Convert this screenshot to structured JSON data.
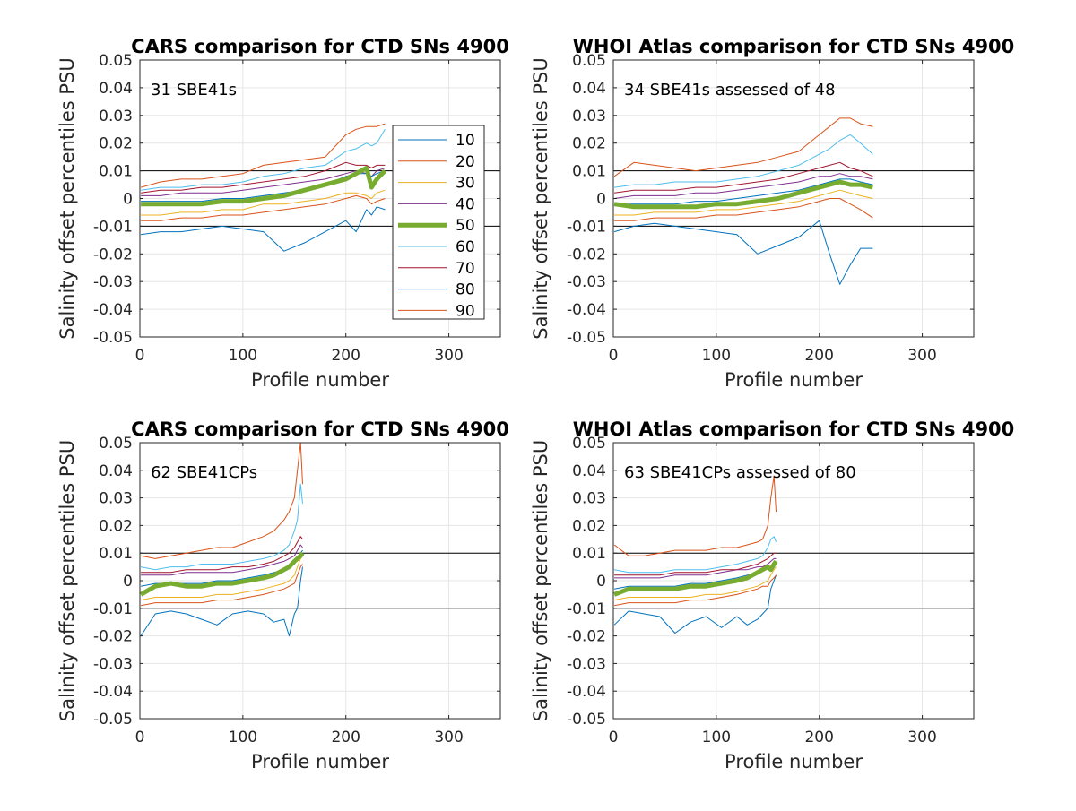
{
  "figure": {
    "background": "#ffffff"
  },
  "percentile_colors": {
    "10": "#0072BD",
    "20": "#D95319",
    "30": "#EDB120",
    "40": "#7E2F8E",
    "50": "#77AC30",
    "60": "#4DBEEE",
    "70": "#A2142F",
    "80": "#0072BD",
    "90": "#D95319"
  },
  "legend": {
    "entries": [
      "10",
      "20",
      "30",
      "40",
      "50",
      "60",
      "70",
      "80",
      "90"
    ],
    "location": "northeast"
  },
  "chart_data": [
    {
      "type": "line",
      "title": "CARS comparison for CTD SNs 4900",
      "xlabel": "Profile number",
      "ylabel": "Salinity offset percentiles PSU",
      "annotation": "31 SBE41s",
      "xlim": [
        0,
        350
      ],
      "ylim": [
        -0.05,
        0.05
      ],
      "xticks": [
        0,
        100,
        200,
        300
      ],
      "yticks": [
        -0.05,
        -0.04,
        -0.03,
        -0.02,
        -0.01,
        0,
        0.01,
        0.02,
        0.03,
        0.04,
        0.05
      ],
      "reference_lines": [
        0.01,
        -0.01
      ],
      "grid": true,
      "show_legend": true,
      "x": [
        1,
        20,
        40,
        60,
        80,
        100,
        120,
        140,
        160,
        180,
        200,
        210,
        220,
        225,
        230,
        238
      ],
      "series": [
        {
          "name": "10",
          "values": [
            -0.013,
            -0.012,
            -0.012,
            -0.011,
            -0.01,
            -0.011,
            -0.012,
            -0.019,
            -0.016,
            -0.012,
            -0.008,
            -0.012,
            -0.004,
            -0.006,
            -0.003,
            -0.004
          ]
        },
        {
          "name": "20",
          "values": [
            0.004,
            0.006,
            0.007,
            0.007,
            0.008,
            0.009,
            0.012,
            0.013,
            0.014,
            0.015,
            0.023,
            0.025,
            0.026,
            0.026,
            0.026,
            0.027
          ]
        },
        {
          "name": "30",
          "values": [
            -0.006,
            -0.006,
            -0.005,
            -0.005,
            -0.004,
            -0.004,
            -0.002,
            -0.002,
            -0.001,
            0.0,
            0.002,
            0.002,
            0.001,
            0.0,
            0.002,
            0.003
          ]
        },
        {
          "name": "40",
          "values": [
            0.001,
            0.001,
            0.002,
            0.002,
            0.002,
            0.003,
            0.004,
            0.005,
            0.006,
            0.007,
            0.009,
            0.01,
            0.009,
            0.008,
            0.01,
            0.011
          ]
        },
        {
          "name": "50",
          "values": [
            -0.002,
            -0.002,
            -0.002,
            -0.002,
            -0.001,
            -0.001,
            0.0,
            0.001,
            0.003,
            0.005,
            0.007,
            0.009,
            0.011,
            0.004,
            0.007,
            0.01
          ]
        },
        {
          "name": "60",
          "values": [
            0.003,
            0.004,
            0.004,
            0.005,
            0.005,
            0.006,
            0.008,
            0.009,
            0.011,
            0.012,
            0.017,
            0.018,
            0.02,
            0.019,
            0.02,
            0.025
          ]
        },
        {
          "name": "70",
          "values": [
            0.002,
            0.003,
            0.003,
            0.004,
            0.004,
            0.005,
            0.006,
            0.007,
            0.008,
            0.01,
            0.013,
            0.012,
            0.012,
            0.011,
            0.012,
            0.012
          ]
        },
        {
          "name": "80",
          "values": [
            -0.001,
            -0.001,
            -0.001,
            -0.001,
            0.0,
            0.0,
            0.001,
            0.002,
            0.003,
            0.005,
            0.008,
            0.009,
            0.009,
            0.008,
            0.009,
            0.01
          ]
        },
        {
          "name": "90",
          "values": [
            -0.008,
            -0.008,
            -0.007,
            -0.007,
            -0.006,
            -0.006,
            -0.005,
            -0.004,
            -0.003,
            -0.002,
            0.0,
            0.001,
            0.0,
            -0.002,
            -0.001,
            0.0
          ]
        }
      ]
    },
    {
      "type": "line",
      "title": "WHOI Atlas comparison for CTD SNs 4900",
      "xlabel": "Profile number",
      "ylabel": "Salinity offset percentiles PSU",
      "annotation": "34 SBE41s assessed of 48",
      "xlim": [
        0,
        350
      ],
      "ylim": [
        -0.05,
        0.05
      ],
      "xticks": [
        0,
        100,
        200,
        300
      ],
      "yticks": [
        -0.05,
        -0.04,
        -0.03,
        -0.02,
        -0.01,
        0,
        0.01,
        0.02,
        0.03,
        0.04,
        0.05
      ],
      "reference_lines": [
        0.01,
        -0.01
      ],
      "grid": true,
      "show_legend": false,
      "x": [
        1,
        20,
        40,
        60,
        80,
        100,
        120,
        140,
        160,
        180,
        200,
        210,
        220,
        230,
        240,
        252
      ],
      "series": [
        {
          "name": "10",
          "values": [
            -0.012,
            -0.01,
            -0.009,
            -0.01,
            -0.011,
            -0.012,
            -0.013,
            -0.02,
            -0.017,
            -0.014,
            -0.008,
            -0.02,
            -0.031,
            -0.024,
            -0.018,
            -0.018
          ]
        },
        {
          "name": "20",
          "values": [
            0.008,
            0.013,
            0.012,
            0.011,
            0.01,
            0.011,
            0.012,
            0.013,
            0.015,
            0.017,
            0.023,
            0.026,
            0.029,
            0.029,
            0.027,
            0.026
          ]
        },
        {
          "name": "30",
          "values": [
            -0.006,
            -0.006,
            -0.005,
            -0.005,
            -0.005,
            -0.004,
            -0.004,
            -0.003,
            -0.002,
            -0.001,
            0.001,
            0.002,
            0.003,
            0.002,
            0.001,
            0.0
          ]
        },
        {
          "name": "40",
          "values": [
            0.0,
            0.001,
            0.001,
            0.001,
            0.002,
            0.002,
            0.003,
            0.004,
            0.005,
            0.006,
            0.008,
            0.008,
            0.009,
            0.008,
            0.008,
            0.007
          ]
        },
        {
          "name": "50",
          "values": [
            -0.002,
            -0.003,
            -0.003,
            -0.003,
            -0.003,
            -0.002,
            -0.002,
            -0.001,
            0.0,
            0.002,
            0.004,
            0.005,
            0.006,
            0.005,
            0.005,
            0.004
          ]
        },
        {
          "name": "60",
          "values": [
            0.004,
            0.005,
            0.005,
            0.006,
            0.006,
            0.006,
            0.007,
            0.008,
            0.01,
            0.012,
            0.016,
            0.018,
            0.021,
            0.023,
            0.02,
            0.016
          ]
        },
        {
          "name": "70",
          "values": [
            0.002,
            0.003,
            0.003,
            0.003,
            0.004,
            0.004,
            0.005,
            0.006,
            0.007,
            0.009,
            0.011,
            0.012,
            0.013,
            0.011,
            0.01,
            0.008
          ]
        },
        {
          "name": "80",
          "values": [
            -0.002,
            -0.002,
            -0.002,
            -0.002,
            -0.001,
            -0.001,
            0.0,
            0.001,
            0.002,
            0.003,
            0.005,
            0.006,
            0.007,
            0.007,
            0.006,
            0.005
          ]
        },
        {
          "name": "90",
          "values": [
            -0.008,
            -0.008,
            -0.007,
            -0.007,
            -0.007,
            -0.006,
            -0.006,
            -0.005,
            -0.004,
            -0.003,
            -0.001,
            0.0,
            0.0,
            -0.002,
            -0.004,
            -0.007
          ]
        }
      ]
    },
    {
      "type": "line",
      "title": "CARS comparison for CTD SNs 4900",
      "xlabel": "Profile number",
      "ylabel": "Salinity offset percentiles PSU",
      "annotation": "62 SBE41CPs",
      "xlim": [
        0,
        350
      ],
      "ylim": [
        -0.05,
        0.05
      ],
      "xticks": [
        0,
        100,
        200,
        300
      ],
      "yticks": [
        -0.05,
        -0.04,
        -0.03,
        -0.02,
        -0.01,
        0,
        0.01,
        0.02,
        0.03,
        0.04,
        0.05
      ],
      "reference_lines": [
        0.01,
        -0.01
      ],
      "grid": true,
      "show_legend": false,
      "x": [
        1,
        15,
        30,
        45,
        60,
        75,
        90,
        105,
        120,
        130,
        140,
        145,
        150,
        153,
        156,
        158
      ],
      "series": [
        {
          "name": "10",
          "values": [
            -0.02,
            -0.012,
            -0.011,
            -0.012,
            -0.014,
            -0.016,
            -0.012,
            -0.011,
            -0.012,
            -0.015,
            -0.014,
            -0.02,
            -0.012,
            -0.01,
            0.0,
            0.005
          ]
        },
        {
          "name": "20",
          "values": [
            0.009,
            0.008,
            0.009,
            0.01,
            0.011,
            0.012,
            0.012,
            0.014,
            0.016,
            0.018,
            0.022,
            0.025,
            0.03,
            0.04,
            0.05,
            0.035
          ]
        },
        {
          "name": "30",
          "values": [
            -0.007,
            -0.006,
            -0.006,
            -0.006,
            -0.006,
            -0.005,
            -0.005,
            -0.004,
            -0.003,
            -0.002,
            -0.001,
            0.0,
            0.002,
            0.005,
            0.008,
            0.009
          ]
        },
        {
          "name": "40",
          "values": [
            0.002,
            0.002,
            0.002,
            0.003,
            0.003,
            0.003,
            0.003,
            0.004,
            0.005,
            0.006,
            0.007,
            0.008,
            0.009,
            0.011,
            0.013,
            0.012
          ]
        },
        {
          "name": "50",
          "values": [
            -0.005,
            -0.002,
            -0.001,
            -0.002,
            -0.002,
            -0.001,
            -0.001,
            0.0,
            0.001,
            0.002,
            0.004,
            0.005,
            0.007,
            0.008,
            0.009,
            0.01
          ]
        },
        {
          "name": "60",
          "values": [
            0.005,
            0.004,
            0.005,
            0.005,
            0.006,
            0.006,
            0.006,
            0.007,
            0.008,
            0.009,
            0.011,
            0.013,
            0.018,
            0.022,
            0.035,
            0.028
          ]
        },
        {
          "name": "70",
          "values": [
            0.003,
            0.003,
            0.003,
            0.004,
            0.004,
            0.004,
            0.005,
            0.005,
            0.006,
            0.007,
            0.009,
            0.01,
            0.012,
            0.014,
            0.016,
            0.015
          ]
        },
        {
          "name": "80",
          "values": [
            -0.002,
            -0.001,
            -0.001,
            -0.001,
            -0.001,
            0.0,
            0.0,
            0.001,
            0.002,
            0.003,
            0.004,
            0.005,
            0.006,
            0.008,
            0.01,
            0.011
          ]
        },
        {
          "name": "90",
          "values": [
            -0.009,
            -0.008,
            -0.008,
            -0.008,
            -0.008,
            -0.007,
            -0.007,
            -0.006,
            -0.005,
            -0.004,
            -0.003,
            -0.002,
            -0.001,
            0.002,
            0.005,
            0.006
          ]
        }
      ]
    },
    {
      "type": "line",
      "title": "WHOI Atlas comparison for CTD SNs 4900",
      "xlabel": "Profile number",
      "ylabel": "Salinity offset percentiles PSU",
      "annotation": "63 SBE41CPs assessed of 80",
      "xlim": [
        0,
        350
      ],
      "ylim": [
        -0.05,
        0.05
      ],
      "xticks": [
        0,
        100,
        200,
        300
      ],
      "yticks": [
        -0.05,
        -0.04,
        -0.03,
        -0.02,
        -0.01,
        0,
        0.01,
        0.02,
        0.03,
        0.04,
        0.05
      ],
      "reference_lines": [
        0.01,
        -0.01
      ],
      "grid": true,
      "show_legend": false,
      "x": [
        1,
        15,
        30,
        45,
        60,
        75,
        90,
        105,
        120,
        130,
        140,
        145,
        150,
        153,
        156,
        158
      ],
      "series": [
        {
          "name": "10",
          "values": [
            -0.016,
            -0.011,
            -0.012,
            -0.013,
            -0.019,
            -0.015,
            -0.013,
            -0.017,
            -0.013,
            -0.016,
            -0.014,
            -0.012,
            -0.01,
            -0.003,
            0.0,
            0.002
          ]
        },
        {
          "name": "20",
          "values": [
            0.013,
            0.009,
            0.009,
            0.01,
            0.011,
            0.011,
            0.011,
            0.012,
            0.012,
            0.013,
            0.014,
            0.015,
            0.02,
            0.03,
            0.038,
            0.025
          ]
        },
        {
          "name": "30",
          "values": [
            -0.007,
            -0.006,
            -0.006,
            -0.006,
            -0.006,
            -0.006,
            -0.005,
            -0.005,
            -0.004,
            -0.003,
            -0.002,
            -0.001,
            0.0,
            0.002,
            0.004,
            0.005
          ]
        },
        {
          "name": "40",
          "values": [
            0.001,
            0.001,
            0.001,
            0.001,
            0.002,
            0.002,
            0.002,
            0.003,
            0.004,
            0.004,
            0.005,
            0.005,
            0.006,
            0.007,
            0.008,
            0.008
          ]
        },
        {
          "name": "50",
          "values": [
            -0.005,
            -0.003,
            -0.003,
            -0.003,
            -0.003,
            -0.002,
            -0.002,
            -0.001,
            0.0,
            0.001,
            0.003,
            0.004,
            0.005,
            0.004,
            0.006,
            0.007
          ]
        },
        {
          "name": "60",
          "values": [
            0.004,
            0.003,
            0.003,
            0.003,
            0.004,
            0.004,
            0.004,
            0.005,
            0.006,
            0.007,
            0.008,
            0.009,
            0.012,
            0.015,
            0.016,
            0.014
          ]
        },
        {
          "name": "70",
          "values": [
            0.002,
            0.002,
            0.002,
            0.002,
            0.003,
            0.003,
            0.003,
            0.004,
            0.004,
            0.005,
            0.006,
            0.007,
            0.008,
            0.009,
            0.01,
            0.01
          ]
        },
        {
          "name": "80",
          "values": [
            -0.003,
            -0.002,
            -0.002,
            -0.002,
            -0.002,
            -0.001,
            -0.001,
            0.0,
            0.001,
            0.002,
            0.003,
            0.004,
            0.005,
            0.005,
            0.006,
            0.007
          ]
        },
        {
          "name": "90",
          "values": [
            -0.009,
            -0.008,
            -0.008,
            -0.008,
            -0.008,
            -0.007,
            -0.007,
            -0.006,
            -0.005,
            -0.004,
            -0.003,
            -0.002,
            -0.002,
            0.0,
            0.001,
            0.002
          ]
        }
      ]
    }
  ]
}
